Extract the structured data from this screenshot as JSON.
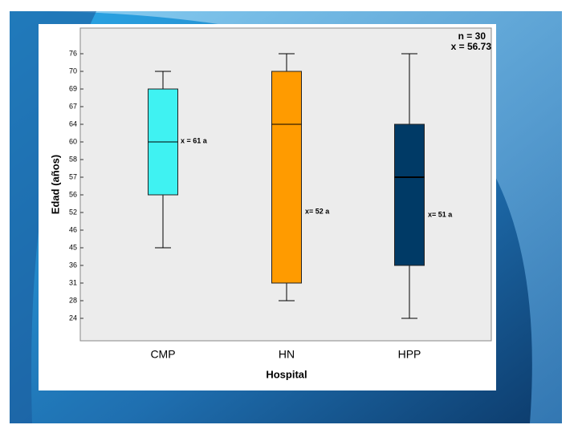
{
  "chart_data": {
    "type": "box",
    "y_label": "Edad (años)",
    "x_label": "Hospital",
    "stats_text": [
      "n = 30",
      "x = 56.73"
    ],
    "categories": [
      "CMP",
      "HN",
      "HPP"
    ],
    "colors": [
      "#3ff2f2",
      "#ff9b00",
      "#003a66"
    ],
    "whisker_low": [
      45,
      28,
      24
    ],
    "q1": [
      56,
      31,
      36
    ],
    "median": [
      60,
      64,
      57
    ],
    "q3": [
      69,
      70,
      64
    ],
    "whisker_high": [
      70,
      76,
      76
    ],
    "annotations": [
      "x = 61 a",
      "x= 52 a",
      "x= 51 a"
    ],
    "yticks": [
      24,
      28,
      31,
      36,
      45,
      46,
      52,
      56,
      57,
      58,
      60,
      64,
      67,
      69,
      70,
      76
    ]
  }
}
